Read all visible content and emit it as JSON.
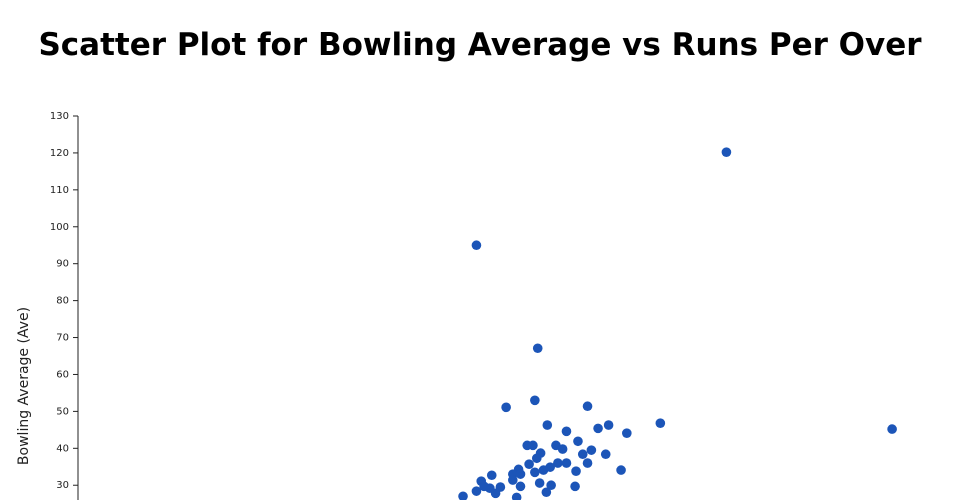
{
  "chart_data": {
    "type": "scatter",
    "title": "Scatter Plot for Bowling Average vs Runs Per Over",
    "y_label": "Bowling Average (Ave)",
    "color": "#1c55b8",
    "xlim": [
      2,
      11
    ],
    "ylim": [
      0,
      130
    ],
    "yticks": [
      30,
      40,
      50,
      60,
      70,
      80,
      90,
      100,
      110,
      120,
      130
    ],
    "x": [
      8.77,
      6.16,
      6.8,
      10.5,
      8.08,
      6.47,
      6.77,
      7.32,
      6.9,
      7.1,
      7.43,
      7.54,
      7.73,
      7.22,
      6.69,
      6.75,
      6.99,
      7.06,
      7.36,
      7.51,
      7.27,
      6.83,
      6.79,
      6.71,
      7.1,
      7.32,
      7.67,
      7.2,
      6.93,
      7.01,
      6.86,
      6.6,
      6.54,
      6.62,
      6.77,
      6.32,
      6.21,
      6.54,
      6.82,
      6.94,
      7.19,
      6.62,
      6.41,
      6.3,
      6.16,
      6.02,
      6.36,
      6.58,
      6.89,
      6.24
    ],
    "values": [
      120.2,
      95.0,
      67.1,
      45.2,
      46.8,
      51.1,
      53.0,
      51.4,
      46.3,
      44.6,
      45.4,
      46.3,
      44.1,
      41.9,
      40.8,
      40.8,
      40.8,
      39.8,
      39.5,
      38.4,
      38.4,
      38.7,
      37.3,
      35.7,
      36.0,
      36.0,
      34.1,
      33.8,
      34.9,
      36.0,
      34.1,
      34.3,
      33.0,
      33.0,
      33.5,
      32.7,
      31.1,
      31.4,
      30.6,
      30.0,
      29.7,
      29.7,
      29.5,
      29.2,
      28.4,
      27.0,
      27.8,
      26.7,
      28.1,
      29.7
    ]
  }
}
